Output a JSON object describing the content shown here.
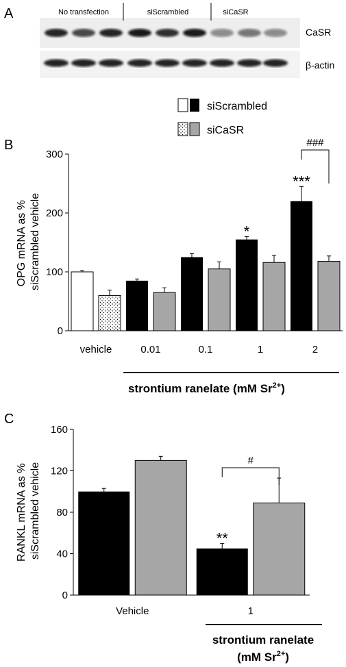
{
  "colors": {
    "siScrambled_vehicle": "#ffffff",
    "siScrambled": "#000000",
    "siCaSR": "#a6a6a6",
    "siCaSR_vehicle_pattern": "dotted",
    "blot_band": "#1a1a1a"
  },
  "panel_a": {
    "letter": "A",
    "lanes": [
      "No transfection",
      "siScrambled",
      "siCaSR"
    ],
    "bands": [
      "CaSR",
      "β-actin"
    ]
  },
  "legend": {
    "series": [
      "siScrambled",
      "siCaSR"
    ]
  },
  "chart_data": [
    {
      "panel": "B",
      "type": "bar",
      "ylabel_line1": "OPG mRNA as %",
      "ylabel_line2": "siScrambled vehicle",
      "categories": [
        "vehicle",
        "0.01",
        "0.1",
        "1",
        "2"
      ],
      "treatment_label": "strontium ranelate (mM Sr",
      "treatment_sup": "2+",
      "treatment_close": ")",
      "ylim": [
        0,
        300
      ],
      "yticks": [
        0,
        100,
        200,
        300
      ],
      "series": [
        {
          "name": "siScrambled",
          "values": [
            100,
            85,
            125,
            155,
            220
          ],
          "errors": [
            2,
            3,
            6,
            5,
            25
          ]
        },
        {
          "name": "siCaSR",
          "values": [
            60,
            65,
            105,
            116,
            118
          ],
          "errors": [
            9,
            8,
            12,
            12,
            9
          ]
        }
      ],
      "annotations": [
        {
          "category": "1",
          "series": "siScrambled",
          "text": "*"
        },
        {
          "category": "2",
          "series": "siScrambled",
          "text": "***"
        },
        {
          "category": "2",
          "series": "bracket",
          "text": "###"
        }
      ]
    },
    {
      "panel": "C",
      "type": "bar",
      "ylabel_line1": "RANKL mRNA as %",
      "ylabel_line2": "siScrambled vehicle",
      "categories": [
        "Vehicle",
        "1"
      ],
      "treatment_label_line1": "strontium ranelate",
      "treatment_label_line2": "(mM Sr",
      "treatment_sup": "2+",
      "treatment_close": ")",
      "ylim": [
        0,
        160
      ],
      "yticks": [
        0,
        40,
        80,
        120,
        160
      ],
      "series": [
        {
          "name": "siScrambled",
          "values": [
            100,
            45
          ],
          "errors": [
            3,
            5
          ]
        },
        {
          "name": "siCaSR",
          "values": [
            130,
            89
          ],
          "errors": [
            4,
            24
          ]
        }
      ],
      "annotations": [
        {
          "category": "1",
          "series": "siScrambled",
          "text": "**"
        },
        {
          "category": "1",
          "series": "bracket",
          "text": "#"
        }
      ]
    }
  ]
}
